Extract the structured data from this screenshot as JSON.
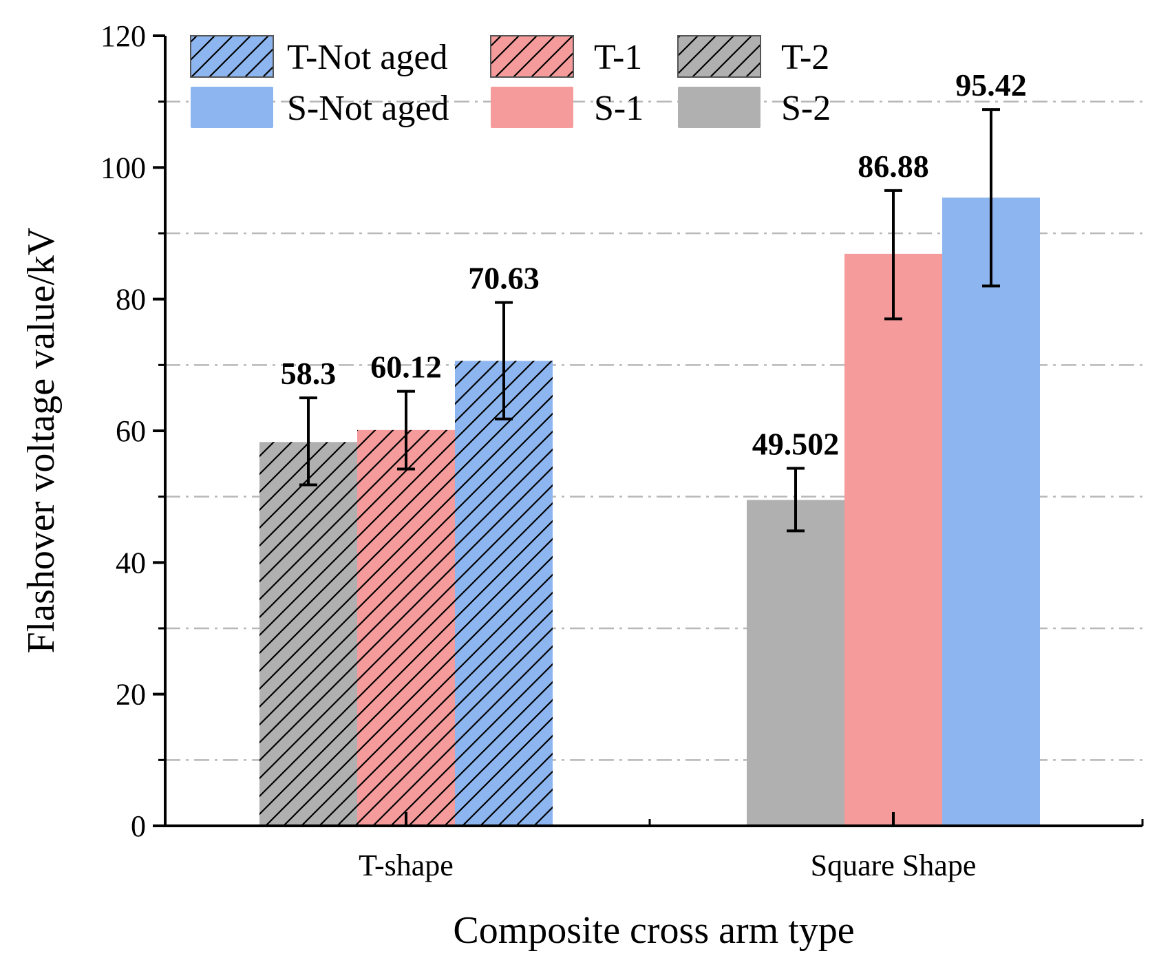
{
  "chart_data": {
    "type": "bar",
    "title": "",
    "xlabel": "Composite cross arm type",
    "ylabel": "Flashover voltage value/kV",
    "ylim": [
      0,
      120
    ],
    "yticks": [
      0,
      20,
      40,
      60,
      80,
      100,
      120
    ],
    "grid": true,
    "legend_position": "top-left",
    "categories": [
      "T-shape",
      "Square Shape"
    ],
    "series": [
      {
        "name": "T-2",
        "category": "T-shape",
        "value": 58.3,
        "label": "58.3",
        "err_low": 51.8,
        "err_high": 65.0,
        "color": "#b0b0b0",
        "hatched": true
      },
      {
        "name": "T-1",
        "category": "T-shape",
        "value": 60.12,
        "label": "60.12",
        "err_low": 54.2,
        "err_high": 66.0,
        "color": "#f59b9b",
        "hatched": true
      },
      {
        "name": "T-Not aged",
        "category": "T-shape",
        "value": 70.63,
        "label": "70.63",
        "err_low": 61.8,
        "err_high": 79.5,
        "color": "#8db6f0",
        "hatched": true
      },
      {
        "name": "S-2",
        "category": "Square Shape",
        "value": 49.502,
        "label": "49.502",
        "err_low": 44.8,
        "err_high": 54.3,
        "color": "#b0b0b0",
        "hatched": false
      },
      {
        "name": "S-1",
        "category": "Square Shape",
        "value": 86.88,
        "label": "86.88",
        "err_low": 77.0,
        "err_high": 96.5,
        "color": "#f59b9b",
        "hatched": false
      },
      {
        "name": "S-Not aged",
        "category": "Square Shape",
        "value": 95.42,
        "label": "95.42",
        "err_low": 82.0,
        "err_high": 108.8,
        "color": "#8db6f0",
        "hatched": false
      }
    ],
    "legend": [
      {
        "label": "T-Not aged",
        "color": "#8db6f0",
        "hatched": true
      },
      {
        "label": "T-1",
        "color": "#f59b9b",
        "hatched": true
      },
      {
        "label": "T-2",
        "color": "#b0b0b0",
        "hatched": true
      },
      {
        "label": "S-Not aged",
        "color": "#8db6f0",
        "hatched": false
      },
      {
        "label": "S-1",
        "color": "#f59b9b",
        "hatched": false
      },
      {
        "label": "S-2",
        "color": "#b0b0b0",
        "hatched": false
      }
    ]
  }
}
